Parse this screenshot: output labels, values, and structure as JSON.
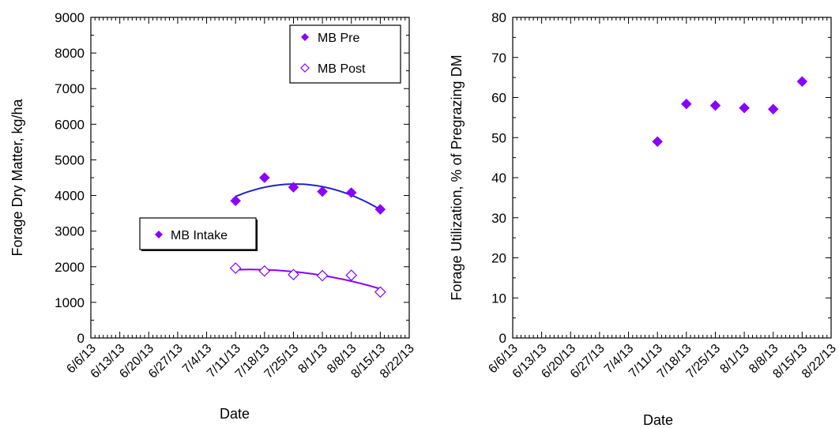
{
  "chart_data": [
    {
      "type": "scatter",
      "title": "",
      "xlabel": "Date",
      "ylabel": "Forage Dry Matter, kg/ha",
      "ylim": [
        0,
        9000
      ],
      "yticks": [
        "0",
        "1000",
        "2000",
        "3000",
        "4000",
        "5000",
        "6000",
        "7000",
        "8000",
        "9000"
      ],
      "xticks": [
        "6/6/13",
        "6/13/13",
        "6/20/13",
        "6/27/13",
        "7/4/13",
        "7/11/13",
        "7/18/13",
        "7/25/13",
        "8/1/13",
        "8/8/13",
        "8/15/13",
        "8/22/13"
      ],
      "grid": false,
      "legend": {
        "placement": "top-right",
        "entries": [
          {
            "name": "MB Pre",
            "marker": "filled-diamond"
          },
          {
            "name": "MB Post",
            "marker": "open-diamond"
          }
        ]
      },
      "annotation": {
        "text": "MB Intake",
        "marker": "filled-diamond"
      },
      "series": [
        {
          "name": "MB Pre",
          "marker": "filled-diamond",
          "trend": "quadratic",
          "x": [
            "7/11/13",
            "7/18/13",
            "7/25/13",
            "8/1/13",
            "8/8/13",
            "8/15/13"
          ],
          "values": [
            3850,
            4500,
            4230,
            4110,
            4080,
            3610
          ]
        },
        {
          "name": "MB Post",
          "marker": "open-diamond",
          "trend": "quadratic",
          "x": [
            "7/11/13",
            "7/18/13",
            "7/25/13",
            "8/1/13",
            "8/8/13",
            "8/15/13"
          ],
          "values": [
            1960,
            1880,
            1780,
            1750,
            1760,
            1290
          ]
        }
      ]
    },
    {
      "type": "scatter",
      "title": "",
      "xlabel": "Date",
      "ylabel": "Forage Utilization, % of Pregrazing DM",
      "ylim": [
        0,
        80
      ],
      "yticks": [
        "0",
        "10",
        "20",
        "30",
        "40",
        "50",
        "60",
        "70",
        "80"
      ],
      "xticks": [
        "6/6/13",
        "6/13/13",
        "6/20/13",
        "6/27/13",
        "7/4/13",
        "7/11/13",
        "7/18/13",
        "7/25/13",
        "8/1/13",
        "8/8/13",
        "8/15/13",
        "8/22/13"
      ],
      "grid": false,
      "series": [
        {
          "marker": "filled-diamond",
          "x": [
            "7/11/13",
            "7/18/13",
            "7/25/13",
            "8/1/13",
            "8/8/13",
            "8/15/13"
          ],
          "values": [
            49,
            58.4,
            58,
            57.4,
            57.1,
            64
          ]
        }
      ]
    }
  ],
  "colors": {
    "marker": "#8a00ff",
    "pre_line": "#2222cc",
    "post_line": "#8a00ff",
    "axis": "#000000"
  }
}
